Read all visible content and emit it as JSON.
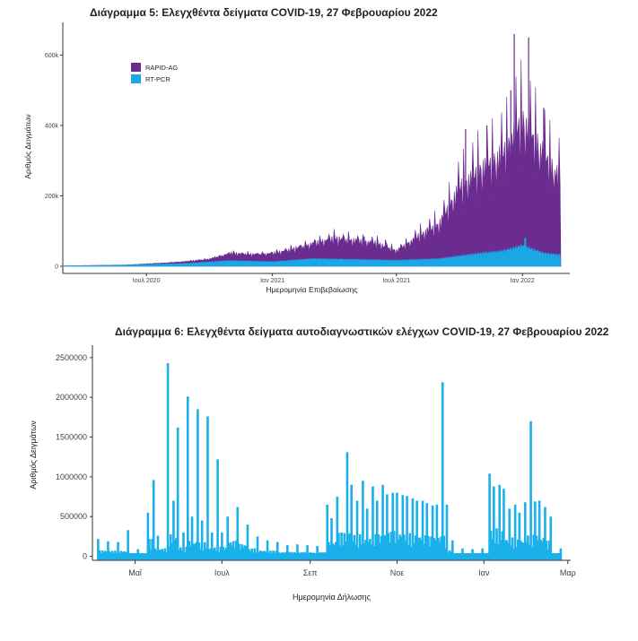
{
  "chart_data": [
    {
      "type": "area",
      "stacked": true,
      "title": "Διάγραμμα 5: Ελεγχθέντα δείγματα COVID-19, 27 Φεβρουαρίου 2022",
      "xlabel": "Ημερομηνία Επιβεβαίωσης",
      "ylabel": "Αριθμός Δειγμάτων",
      "x_range": [
        "2020-03-01",
        "2022-02-26"
      ],
      "xticks": [
        {
          "date": "2020-07-01",
          "label": "Ιουλ 2020"
        },
        {
          "date": "2021-01-01",
          "label": "Ιαν 2021"
        },
        {
          "date": "2021-07-01",
          "label": "Ιουλ 2021"
        },
        {
          "date": "2022-01-01",
          "label": "Ιαν 2022"
        }
      ],
      "ylim": [
        0,
        680000
      ],
      "yticks": [
        {
          "value": 0,
          "label": "0"
        },
        {
          "value": 200000,
          "label": "200k"
        },
        {
          "value": 400000,
          "label": "400k"
        },
        {
          "value": 600000,
          "label": "600k"
        }
      ],
      "legend_position": "top-left",
      "grid": false,
      "series": [
        {
          "name": "RAPID-AG",
          "color": "#6a2c8e",
          "points": [
            [
              "2020-03-01",
              0
            ],
            [
              "2020-06-01",
              500
            ],
            [
              "2020-08-01",
              3000
            ],
            [
              "2020-10-01",
              8000
            ],
            [
              "2020-11-01",
              20000
            ],
            [
              "2020-12-01",
              18000
            ],
            [
              "2021-01-01",
              22000
            ],
            [
              "2021-02-01",
              30000
            ],
            [
              "2021-03-01",
              40000
            ],
            [
              "2021-04-01",
              55000
            ],
            [
              "2021-05-01",
              50000
            ],
            [
              "2021-06-01",
              45000
            ],
            [
              "2021-07-01",
              25000
            ],
            [
              "2021-08-01",
              60000
            ],
            [
              "2021-09-01",
              90000
            ],
            [
              "2021-10-01",
              180000
            ],
            [
              "2021-11-01",
              220000
            ],
            [
              "2021-12-01",
              250000
            ],
            [
              "2022-01-01",
              330000
            ],
            [
              "2022-02-01",
              260000
            ],
            [
              "2022-02-26",
              200000
            ]
          ],
          "peaks": [
            [
              "2020-11-15",
              35000
            ],
            [
              "2021-01-15",
              40000
            ],
            [
              "2021-03-15",
              70000
            ],
            [
              "2021-04-15",
              80000
            ],
            [
              "2021-05-15",
              85000
            ],
            [
              "2021-06-15",
              75000
            ],
            [
              "2021-08-15",
              110000
            ],
            [
              "2021-09-15",
              120000
            ],
            [
              "2021-10-10",
              390000
            ],
            [
              "2021-11-10",
              400000
            ],
            [
              "2021-12-15",
              500000
            ],
            [
              "2021-12-20",
              660000
            ],
            [
              "2022-01-10",
              650000
            ],
            [
              "2022-02-01",
              450000
            ]
          ]
        },
        {
          "name": "RT-PCR",
          "color": "#1aa7e6",
          "points": [
            [
              "2020-03-01",
              1000
            ],
            [
              "2020-06-01",
              3000
            ],
            [
              "2020-09-01",
              8000
            ],
            [
              "2020-11-01",
              15000
            ],
            [
              "2021-01-01",
              12000
            ],
            [
              "2021-03-01",
              20000
            ],
            [
              "2021-05-01",
              18000
            ],
            [
              "2021-07-01",
              16000
            ],
            [
              "2021-09-01",
              20000
            ],
            [
              "2021-11-01",
              35000
            ],
            [
              "2021-12-01",
              40000
            ],
            [
              "2022-01-01",
              55000
            ],
            [
              "2022-02-01",
              35000
            ],
            [
              "2022-02-26",
              30000
            ]
          ],
          "peaks": [
            [
              "2022-01-05",
              80000
            ]
          ]
        }
      ]
    },
    {
      "type": "bar",
      "title": "Διάγραμμα 6: Ελεγχθέντα δείγματα αυτοδιαγνωστικών ελέγχων COVID-19, 27 Φεβρουαρίου 2022",
      "xlabel": "Ημερομηνία Δήλωσης",
      "ylabel": "Αριθμός Δειγμάτων",
      "x_range": [
        "2021-04-01",
        "2022-03-03"
      ],
      "xticks": [
        {
          "date": "2021-05-01",
          "label": "Μαΐ"
        },
        {
          "date": "2021-07-01",
          "label": "Ιουλ"
        },
        {
          "date": "2021-09-01",
          "label": "Σεπ"
        },
        {
          "date": "2021-11-01",
          "label": "Νοε"
        },
        {
          "date": "2022-01-01",
          "label": "Ιαν"
        },
        {
          "date": "2022-03-01",
          "label": "Μαρ"
        }
      ],
      "ylim": [
        -50000,
        2600000
      ],
      "yticks": [
        {
          "value": 0,
          "label": "0"
        },
        {
          "value": 500000,
          "label": "500000"
        },
        {
          "value": 1000000,
          "label": "1000000"
        },
        {
          "value": 1500000,
          "label": "1500000"
        },
        {
          "value": 2000000,
          "label": "2000000"
        },
        {
          "value": 2500000,
          "label": "2500000"
        }
      ],
      "grid": false,
      "series": [
        {
          "name": "",
          "color": "#1ab0ea",
          "values": [
            [
              "2021-04-05",
              220000
            ],
            [
              "2021-04-12",
              190000
            ],
            [
              "2021-04-19",
              180000
            ],
            [
              "2021-04-26",
              330000
            ],
            [
              "2021-05-03",
              90000
            ],
            [
              "2021-05-10",
              550000
            ],
            [
              "2021-05-14",
              960000
            ],
            [
              "2021-05-17",
              260000
            ],
            [
              "2021-05-24",
              2430000
            ],
            [
              "2021-05-28",
              700000
            ],
            [
              "2021-05-31",
              1620000
            ],
            [
              "2021-06-04",
              300000
            ],
            [
              "2021-06-07",
              2010000
            ],
            [
              "2021-06-10",
              500000
            ],
            [
              "2021-06-14",
              1850000
            ],
            [
              "2021-06-17",
              450000
            ],
            [
              "2021-06-21",
              1760000
            ],
            [
              "2021-06-24",
              300000
            ],
            [
              "2021-06-28",
              1220000
            ],
            [
              "2021-07-01",
              300000
            ],
            [
              "2021-07-05",
              500000
            ],
            [
              "2021-07-12",
              620000
            ],
            [
              "2021-07-19",
              400000
            ],
            [
              "2021-07-26",
              250000
            ],
            [
              "2021-08-02",
              200000
            ],
            [
              "2021-08-09",
              180000
            ],
            [
              "2021-08-16",
              140000
            ],
            [
              "2021-08-23",
              150000
            ],
            [
              "2021-08-30",
              140000
            ],
            [
              "2021-09-06",
              130000
            ],
            [
              "2021-09-13",
              650000
            ],
            [
              "2021-09-16",
              480000
            ],
            [
              "2021-09-20",
              750000
            ],
            [
              "2021-09-27",
              1310000
            ],
            [
              "2021-09-30",
              900000
            ],
            [
              "2021-10-04",
              700000
            ],
            [
              "2021-10-08",
              950000
            ],
            [
              "2021-10-11",
              600000
            ],
            [
              "2021-10-15",
              880000
            ],
            [
              "2021-10-18",
              700000
            ],
            [
              "2021-10-22",
              900000
            ],
            [
              "2021-10-25",
              780000
            ],
            [
              "2021-10-29",
              800000
            ],
            [
              "2021-11-01",
              800000
            ],
            [
              "2021-11-05",
              770000
            ],
            [
              "2021-11-08",
              760000
            ],
            [
              "2021-11-12",
              730000
            ],
            [
              "2021-11-15",
              700000
            ],
            [
              "2021-11-19",
              700000
            ],
            [
              "2021-11-22",
              670000
            ],
            [
              "2021-11-26",
              640000
            ],
            [
              "2021-11-29",
              650000
            ],
            [
              "2021-12-03",
              2190000
            ],
            [
              "2021-12-06",
              650000
            ],
            [
              "2021-12-10",
              200000
            ],
            [
              "2021-12-17",
              100000
            ],
            [
              "2021-12-24",
              90000
            ],
            [
              "2021-12-31",
              100000
            ],
            [
              "2022-01-05",
              1040000
            ],
            [
              "2022-01-08",
              880000
            ],
            [
              "2022-01-12",
              900000
            ],
            [
              "2022-01-15",
              850000
            ],
            [
              "2022-01-19",
              600000
            ],
            [
              "2022-01-23",
              650000
            ],
            [
              "2022-01-26",
              550000
            ],
            [
              "2022-01-30",
              680000
            ],
            [
              "2022-02-03",
              1700000
            ],
            [
              "2022-02-06",
              690000
            ],
            [
              "2022-02-09",
              700000
            ],
            [
              "2022-02-13",
              620000
            ],
            [
              "2022-02-17",
              500000
            ],
            [
              "2022-02-24",
              100000
            ]
          ]
        }
      ]
    }
  ]
}
